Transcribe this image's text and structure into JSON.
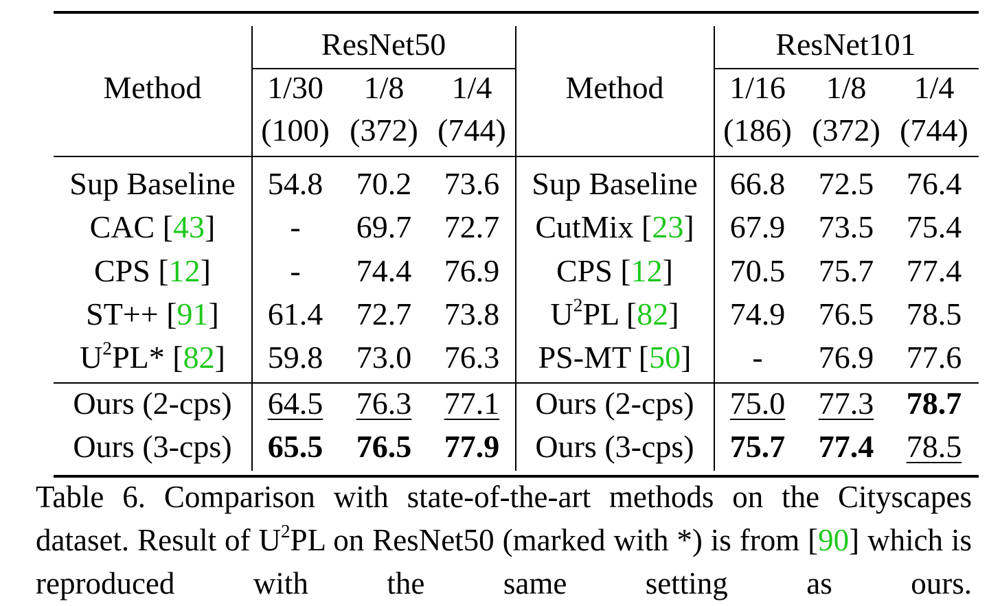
{
  "table": {
    "header": {
      "left": {
        "group": "ResNet50",
        "method": "Method",
        "splits": [
          [
            "1/30",
            "(100)"
          ],
          [
            "1/8",
            "(372)"
          ],
          [
            "1/4",
            "(744)"
          ]
        ]
      },
      "right": {
        "group": "ResNet101",
        "method": "Method",
        "splits": [
          [
            "1/16",
            "(186)"
          ],
          [
            "1/8",
            "(372)"
          ],
          [
            "1/4",
            "(744)"
          ]
        ]
      }
    },
    "rows": [
      {
        "left": {
          "method": [
            {
              "t": "Sup Baseline"
            }
          ],
          "cells": [
            "54.8",
            "70.2",
            "73.6"
          ]
        },
        "right": {
          "method": [
            {
              "t": "Sup Baseline"
            }
          ],
          "cells": [
            "66.8",
            "72.5",
            "76.4"
          ]
        }
      },
      {
        "left": {
          "method": [
            {
              "t": "CAC ["
            },
            {
              "t": "43",
              "style": "cite"
            },
            {
              "t": "]"
            }
          ],
          "cells": [
            "-",
            "69.7",
            "72.7"
          ]
        },
        "right": {
          "method": [
            {
              "t": "CutMix ["
            },
            {
              "t": "23",
              "style": "cite"
            },
            {
              "t": "]"
            }
          ],
          "cells": [
            "67.9",
            "73.5",
            "75.4"
          ]
        }
      },
      {
        "left": {
          "method": [
            {
              "t": "CPS ["
            },
            {
              "t": "12",
              "style": "cite"
            },
            {
              "t": "]"
            }
          ],
          "cells": [
            "-",
            "74.4",
            "76.9"
          ]
        },
        "right": {
          "method": [
            {
              "t": "CPS ["
            },
            {
              "t": "12",
              "style": "cite"
            },
            {
              "t": "]"
            }
          ],
          "cells": [
            "70.5",
            "75.7",
            "77.4"
          ]
        }
      },
      {
        "left": {
          "method": [
            {
              "t": "ST++ ["
            },
            {
              "t": "91",
              "style": "cite"
            },
            {
              "t": "]"
            }
          ],
          "cells": [
            "61.4",
            "72.7",
            "73.8"
          ]
        },
        "right": {
          "method": [
            {
              "t": "U"
            },
            {
              "t": "2",
              "style": "sup"
            },
            {
              "t": "PL ["
            },
            {
              "t": "82",
              "style": "cite"
            },
            {
              "t": "]"
            }
          ],
          "cells": [
            "74.9",
            "76.5",
            "78.5"
          ]
        }
      },
      {
        "left": {
          "method": [
            {
              "t": "U"
            },
            {
              "t": "2",
              "style": "sup"
            },
            {
              "t": "PL* ["
            },
            {
              "t": "82",
              "style": "cite"
            },
            {
              "t": "]"
            }
          ],
          "cells": [
            "59.8",
            "73.0",
            "76.3"
          ]
        },
        "right": {
          "method": [
            {
              "t": "PS-MT ["
            },
            {
              "t": "50",
              "style": "cite"
            },
            {
              "t": "]"
            }
          ],
          "cells": [
            "-",
            "76.9",
            "77.6"
          ]
        }
      },
      {
        "left": {
          "method": [
            {
              "t": "Ours (2-cps)"
            }
          ],
          "cells": [
            {
              "text": "64.5",
              "style": "underline"
            },
            {
              "text": "76.3",
              "style": "underline"
            },
            {
              "text": "77.1",
              "style": "underline"
            }
          ]
        },
        "right": {
          "method": [
            {
              "t": "Ours (2-cps)"
            }
          ],
          "cells": [
            {
              "text": "75.0",
              "style": "underline"
            },
            {
              "text": "77.3",
              "style": "underline"
            },
            {
              "text": "78.7",
              "style": "bold"
            }
          ]
        }
      },
      {
        "left": {
          "method": [
            {
              "t": "Ours (3-cps)"
            }
          ],
          "cells": [
            {
              "text": "65.5",
              "style": "bold"
            },
            {
              "text": "76.5",
              "style": "bold"
            },
            {
              "text": "77.9",
              "style": "bold"
            }
          ]
        },
        "right": {
          "method": [
            {
              "t": "Ours (3-cps)"
            }
          ],
          "cells": [
            {
              "text": "75.7",
              "style": "bold"
            },
            {
              "text": "77.4",
              "style": "bold"
            },
            {
              "text": "78.5",
              "style": "underline"
            }
          ]
        }
      }
    ]
  },
  "caption": [
    {
      "t": "Table 6. Comparison with state-of-the-art methods on the Cityscapes dataset. Result of U"
    },
    {
      "t": "2",
      "style": "sup"
    },
    {
      "t": "PL on ResNet50 (marked with *) is from ["
    },
    {
      "t": "90",
      "style": "cite"
    },
    {
      "t": "] which is reproduced with the same setting as ours."
    }
  ]
}
